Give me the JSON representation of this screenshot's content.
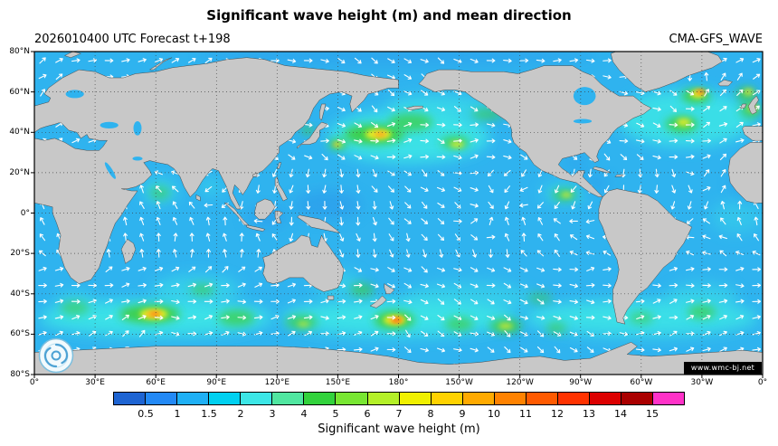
{
  "header": {
    "title": "Significant wave height (m) and mean direction",
    "left": "2026010400 UTC Forecast t+198",
    "right": "CMA-GFS_WAVE"
  },
  "axes": {
    "lat_labels": [
      "80°N",
      "60°N",
      "40°N",
      "20°N",
      "0°",
      "20°S",
      "40°S",
      "60°S",
      "80°S"
    ],
    "lon_labels": [
      "0°",
      "30°E",
      "60°E",
      "90°E",
      "120°E",
      "150°E",
      "180°",
      "150°W",
      "120°W",
      "90°W",
      "60°W",
      "30°W",
      "0°"
    ]
  },
  "colorbar": {
    "label": "Significant wave height (m)",
    "ticks": [
      "0.5",
      "1",
      "1.5",
      "2",
      "3",
      "4",
      "5",
      "6",
      "7",
      "8",
      "9",
      "10",
      "11",
      "12",
      "13",
      "14",
      "15"
    ],
    "colors": [
      "#1e64d2",
      "#2389f5",
      "#1fb0f5",
      "#00d0f0",
      "#3ce6e6",
      "#50e6a0",
      "#32d23c",
      "#78e632",
      "#b4f028",
      "#f0f000",
      "#ffd200",
      "#ffaa00",
      "#ff8200",
      "#ff5a00",
      "#ff3200",
      "#dc0000",
      "#aa0000",
      "#ff32c8"
    ]
  },
  "watermark": {
    "text": "www.wmc-bj.net"
  },
  "logo": {
    "icon": "wmc-spiral-logo"
  },
  "map_colors": {
    "land": "#c8c8c8",
    "coast": "#4a4a4a",
    "ocean_base": "#2fb3ef",
    "cyan": "#3ce6e6",
    "calm_blue": "#2a93ea",
    "green": "#3ccd3a",
    "yellow": "#f0ee26",
    "orange": "#ff9a1e",
    "red": "#ff4418",
    "grid": "#3c3c3c",
    "arrow": "#ffffff"
  },
  "chart_data": {
    "type": "heatmap",
    "title": "Significant wave height (m) and mean direction",
    "init_time": "2026010400 UTC",
    "forecast_lead": "t+198",
    "model": "CMA-GFS_WAVE",
    "units": "m",
    "projection": "equirectangular, Pacific-centered",
    "lon_range_deg": [
      0,
      360
    ],
    "lat_range_deg": [
      -80,
      80
    ],
    "grid_interval_deg": {
      "lat": 20,
      "lon": 30
    },
    "colorbar_levels_m": [
      0.5,
      1,
      1.5,
      2,
      3,
      4,
      5,
      6,
      7,
      8,
      9,
      10,
      11,
      12,
      13,
      14,
      15
    ],
    "background_swh_m": "1-2 m over most open ocean, calmer (<1 m) in enclosed and equatorial west Pacific seas",
    "vectors": "white arrows show mean wave direction on a regular grid over the oceans",
    "maxima": [
      {
        "region": "North Pacific storm (165-185°E, 35-45°N)",
        "peak_swh_m": 6
      },
      {
        "region": "NW Pacific east of Japan (148°E, 34°N)",
        "peak_swh_m": 5
      },
      {
        "region": "NE Pacific (150°W, 35°N)",
        "peak_swh_m": 5
      },
      {
        "region": "Gulf of Alaska arc (50°N)",
        "peak_swh_m": 4
      },
      {
        "region": "North Atlantic south of Iceland (30°W, 58-62°N)",
        "peak_swh_m": 8
      },
      {
        "region": "Central North Atlantic (40°W, 45°N)",
        "peak_swh_m": 6
      },
      {
        "region": "NE Atlantic west of UK / Bay of Biscay",
        "peak_swh_m": 6
      },
      {
        "region": "South Indian Ocean (55-70°E, 50°S)",
        "peak_swh_m": 8
      },
      {
        "region": "Southern Ocean south of New Zealand (175-185°E, 52-56°S)",
        "peak_swh_m": 9
      },
      {
        "region": "South Pacific (127°W, 56°S)",
        "peak_swh_m": 6
      },
      {
        "region": "South Atlantic (30°W, 49°S)",
        "peak_swh_m": 4
      },
      {
        "region": "Tropical East Pacific off Central America (98°W, 9°N)",
        "peak_swh_m": 4
      }
    ]
  }
}
